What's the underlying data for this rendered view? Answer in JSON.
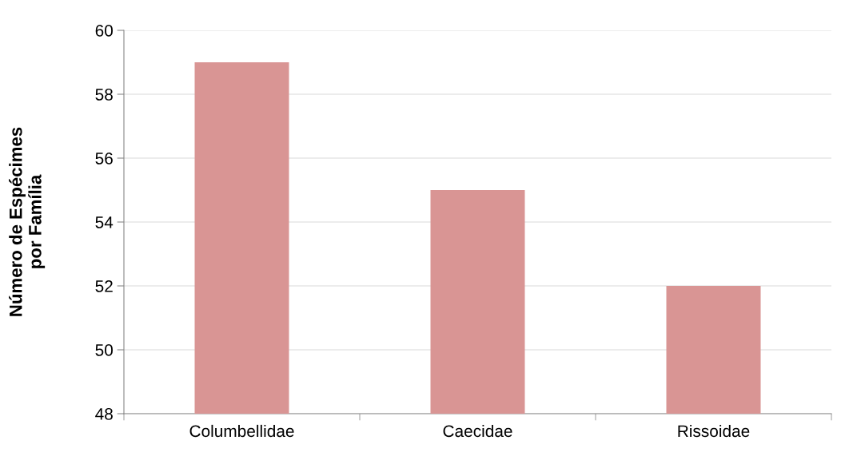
{
  "chart_data": {
    "type": "bar",
    "ylabel": "Número de Espécimes\npor Família",
    "categories": [
      "Columbellidae",
      "Caecidae",
      "Rissoidae"
    ],
    "values": [
      59,
      55,
      52
    ],
    "color": "#d99594",
    "ylim": [
      48,
      60
    ],
    "yticks": [
      48,
      50,
      52,
      54,
      56,
      58,
      60
    ],
    "grid": "y",
    "legend": false
  }
}
